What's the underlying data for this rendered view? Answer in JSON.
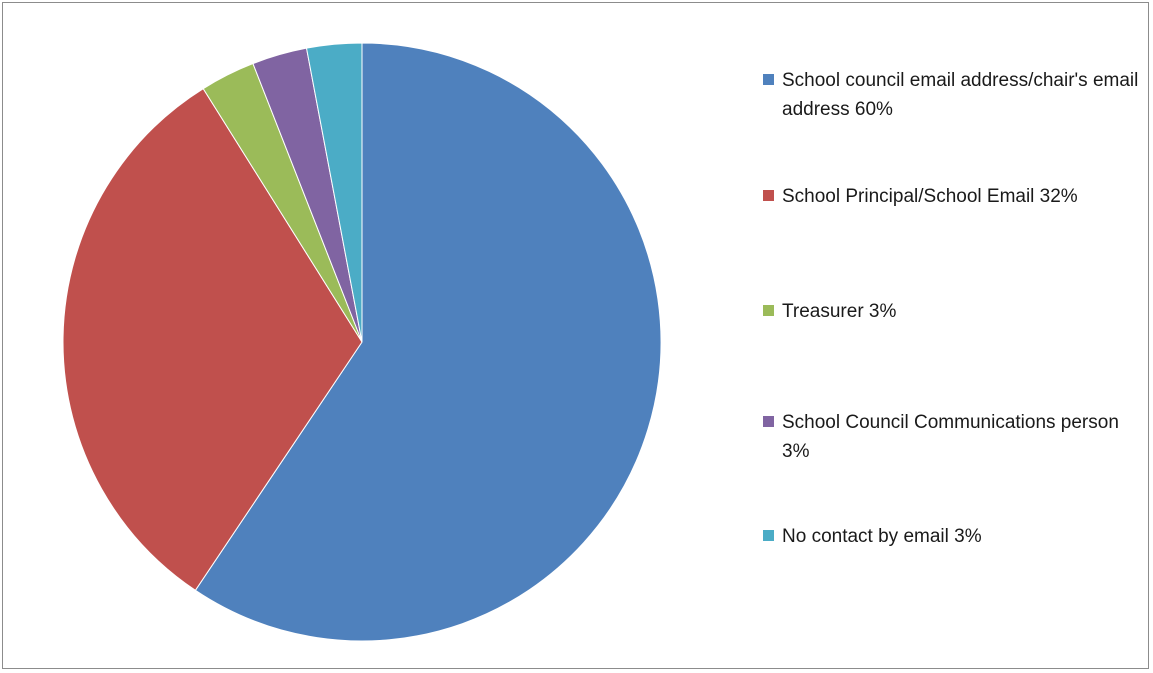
{
  "chart_data": {
    "type": "pie",
    "title": "",
    "slices": [
      {
        "label": "School council email address/chair's email address",
        "percent_label": "60%",
        "value": 60,
        "color": "#4f81bd"
      },
      {
        "label": "School Principal/School Email",
        "percent_label": "32%",
        "value": 32,
        "color": "#c0504d"
      },
      {
        "label": "Treasurer",
        "percent_label": "3%",
        "value": 3,
        "color": "#9bbb59"
      },
      {
        "label": "School Council Communications person",
        "percent_label": "3%",
        "value": 3,
        "color": "#8064a2"
      },
      {
        "label": "No contact by email",
        "percent_label": "3%",
        "value": 3,
        "color": "#4bacc6"
      }
    ],
    "legend": {
      "position": "right",
      "entries": [
        "School council email address/chair's email address 60%",
        "School Principal/School Email 32%",
        "Treasurer 3%",
        "School Council Communications person 3%",
        "No contact by email 3%"
      ]
    }
  }
}
